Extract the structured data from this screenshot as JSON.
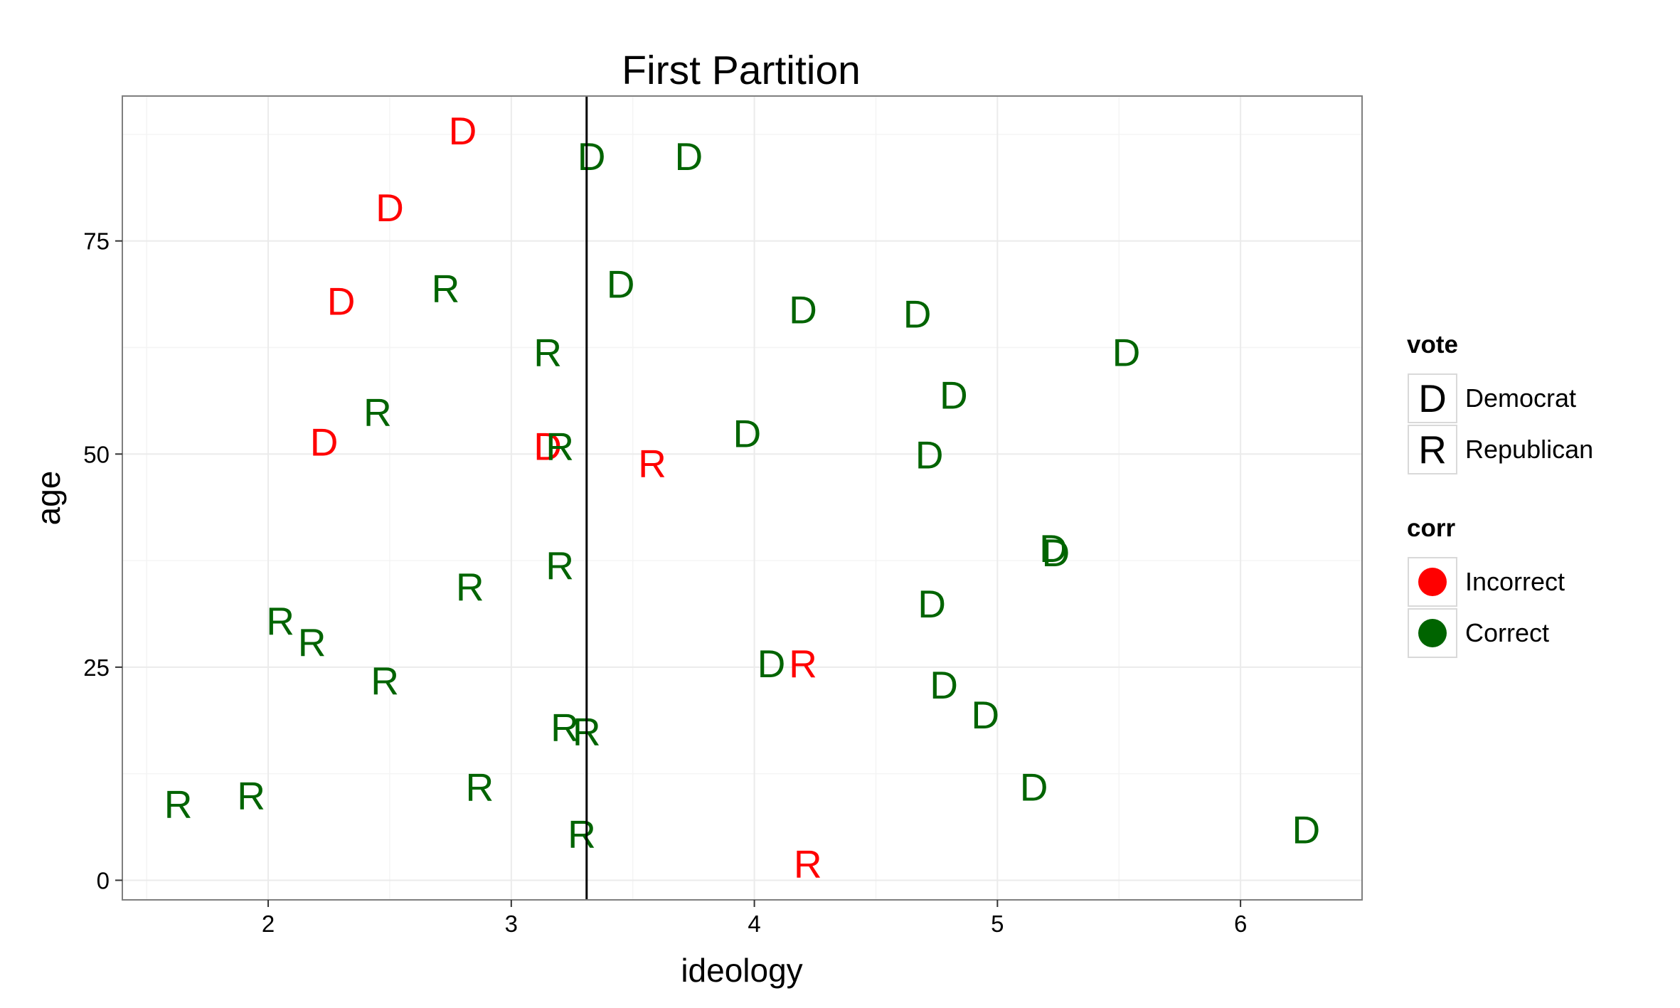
{
  "chart_data": {
    "type": "scatter",
    "title": "First Partition",
    "xlabel": "ideology",
    "ylabel": "age",
    "xlim": [
      1.4,
      6.5
    ],
    "ylim": [
      -2.3,
      92.0
    ],
    "x_ticks": [
      2,
      3,
      4,
      5,
      6
    ],
    "y_ticks": [
      0,
      25,
      50,
      75
    ],
    "grid": true,
    "legend_position": "right",
    "split_line_x": 3.31,
    "colors": {
      "Incorrect": "#ff0000",
      "Correct": "#006400"
    },
    "legends": [
      {
        "title": "vote",
        "kind": "shape",
        "entries": [
          {
            "key": "D",
            "label": "Democrat"
          },
          {
            "key": "R",
            "label": "Republican"
          }
        ]
      },
      {
        "title": "corr",
        "kind": "color",
        "entries": [
          {
            "key": "Incorrect",
            "label": "Incorrect"
          },
          {
            "key": "Correct",
            "label": "Correct"
          }
        ]
      }
    ],
    "points": [
      {
        "x": 2.8,
        "y": 88,
        "vote": "D",
        "corr": "Incorrect"
      },
      {
        "x": 3.33,
        "y": 85,
        "vote": "D",
        "corr": "Correct"
      },
      {
        "x": 3.73,
        "y": 85,
        "vote": "D",
        "corr": "Correct"
      },
      {
        "x": 2.5,
        "y": 79,
        "vote": "D",
        "corr": "Incorrect"
      },
      {
        "x": 2.3,
        "y": 68,
        "vote": "D",
        "corr": "Incorrect"
      },
      {
        "x": 2.73,
        "y": 69.5,
        "vote": "R",
        "corr": "Correct"
      },
      {
        "x": 3.45,
        "y": 70,
        "vote": "D",
        "corr": "Correct"
      },
      {
        "x": 4.2,
        "y": 67,
        "vote": "D",
        "corr": "Correct"
      },
      {
        "x": 4.67,
        "y": 66.5,
        "vote": "D",
        "corr": "Correct"
      },
      {
        "x": 3.15,
        "y": 62,
        "vote": "R",
        "corr": "Correct"
      },
      {
        "x": 5.53,
        "y": 62,
        "vote": "D",
        "corr": "Correct"
      },
      {
        "x": 4.82,
        "y": 57,
        "vote": "D",
        "corr": "Correct"
      },
      {
        "x": 2.45,
        "y": 55,
        "vote": "R",
        "corr": "Correct"
      },
      {
        "x": 2.23,
        "y": 51.5,
        "vote": "D",
        "corr": "Incorrect"
      },
      {
        "x": 3.15,
        "y": 51,
        "vote": "D",
        "corr": "Incorrect"
      },
      {
        "x": 3.2,
        "y": 51,
        "vote": "R",
        "corr": "Correct"
      },
      {
        "x": 3.58,
        "y": 49,
        "vote": "R",
        "corr": "Incorrect"
      },
      {
        "x": 3.97,
        "y": 52.5,
        "vote": "D",
        "corr": "Correct"
      },
      {
        "x": 4.72,
        "y": 50,
        "vote": "D",
        "corr": "Correct"
      },
      {
        "x": 5.23,
        "y": 39,
        "vote": "D",
        "corr": "Correct"
      },
      {
        "x": 5.24,
        "y": 38.5,
        "vote": "D",
        "corr": "Correct"
      },
      {
        "x": 3.2,
        "y": 37,
        "vote": "R",
        "corr": "Correct"
      },
      {
        "x": 2.83,
        "y": 34.5,
        "vote": "R",
        "corr": "Correct"
      },
      {
        "x": 4.73,
        "y": 32.5,
        "vote": "D",
        "corr": "Correct"
      },
      {
        "x": 2.05,
        "y": 30.5,
        "vote": "R",
        "corr": "Correct"
      },
      {
        "x": 2.18,
        "y": 28,
        "vote": "R",
        "corr": "Correct"
      },
      {
        "x": 4.07,
        "y": 25.5,
        "vote": "D",
        "corr": "Correct"
      },
      {
        "x": 4.2,
        "y": 25.5,
        "vote": "R",
        "corr": "Incorrect"
      },
      {
        "x": 2.48,
        "y": 23.5,
        "vote": "R",
        "corr": "Correct"
      },
      {
        "x": 4.78,
        "y": 23,
        "vote": "D",
        "corr": "Correct"
      },
      {
        "x": 4.95,
        "y": 19.5,
        "vote": "D",
        "corr": "Correct"
      },
      {
        "x": 3.22,
        "y": 18,
        "vote": "R",
        "corr": "Correct"
      },
      {
        "x": 3.31,
        "y": 17.5,
        "vote": "R",
        "corr": "Correct"
      },
      {
        "x": 2.87,
        "y": 11,
        "vote": "R",
        "corr": "Correct"
      },
      {
        "x": 1.93,
        "y": 10,
        "vote": "R",
        "corr": "Correct"
      },
      {
        "x": 5.15,
        "y": 11,
        "vote": "D",
        "corr": "Correct"
      },
      {
        "x": 1.63,
        "y": 9,
        "vote": "R",
        "corr": "Correct"
      },
      {
        "x": 3.29,
        "y": 5.5,
        "vote": "R",
        "corr": "Correct"
      },
      {
        "x": 6.27,
        "y": 6,
        "vote": "D",
        "corr": "Correct"
      },
      {
        "x": 4.22,
        "y": 2,
        "vote": "R",
        "corr": "Incorrect"
      }
    ]
  }
}
